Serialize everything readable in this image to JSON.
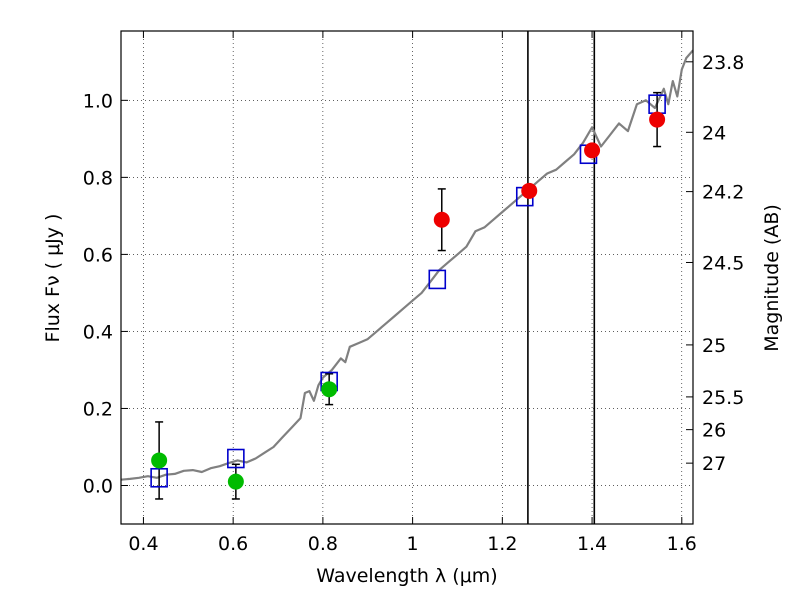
{
  "chart_data": {
    "type": "scatter",
    "title": "",
    "xlabel": "Wavelength  λ (μm)",
    "ylabel": "Flux  Fν  ( μJy )",
    "ylabel_right": "Magnitude (AB)",
    "xlim": [
      0.35,
      1.625
    ],
    "ylim": [
      -0.1,
      1.18
    ],
    "grid": true,
    "x_ticks": [
      0.4,
      0.6,
      0.8,
      1.0,
      1.2,
      1.4,
      1.6
    ],
    "x_tick_labels": [
      "0.4",
      "0.6",
      "0.8",
      "1",
      "1.2",
      "1.4",
      "1.6"
    ],
    "y_ticks": [
      0.0,
      0.2,
      0.4,
      0.6,
      0.8,
      1.0
    ],
    "y_tick_labels": [
      "0.0",
      "0.2",
      "0.4",
      "0.6",
      "0.8",
      "1.0"
    ],
    "right_ticks": [
      {
        "label": "23.8",
        "flux": 1.1
      },
      {
        "label": "24",
        "flux": 0.917
      },
      {
        "label": "24.2",
        "flux": 0.763
      },
      {
        "label": "24.5",
        "flux": 0.579
      },
      {
        "label": "25",
        "flux": 0.365
      },
      {
        "label": "25.5",
        "flux": 0.23
      },
      {
        "label": "26",
        "flux": 0.145
      },
      {
        "label": "27",
        "flux": 0.058
      }
    ],
    "vertical_lines": [
      1.257,
      1.405
    ],
    "model_spectrum": {
      "color": "#808080",
      "x": [
        0.35,
        0.37,
        0.39,
        0.41,
        0.43,
        0.45,
        0.47,
        0.49,
        0.51,
        0.53,
        0.55,
        0.57,
        0.59,
        0.61,
        0.63,
        0.65,
        0.67,
        0.69,
        0.71,
        0.73,
        0.75,
        0.76,
        0.77,
        0.78,
        0.79,
        0.8,
        0.82,
        0.84,
        0.85,
        0.86,
        0.88,
        0.9,
        0.92,
        0.94,
        0.96,
        0.98,
        1.0,
        1.02,
        1.04,
        1.06,
        1.08,
        1.1,
        1.12,
        1.14,
        1.16,
        1.18,
        1.2,
        1.22,
        1.24,
        1.26,
        1.28,
        1.3,
        1.32,
        1.34,
        1.36,
        1.38,
        1.4,
        1.42,
        1.44,
        1.46,
        1.48,
        1.5,
        1.52,
        1.54,
        1.56,
        1.57,
        1.58,
        1.59,
        1.6,
        1.61,
        1.625
      ],
      "y": [
        0.015,
        0.017,
        0.02,
        0.024,
        0.02,
        0.028,
        0.03,
        0.038,
        0.04,
        0.035,
        0.045,
        0.05,
        0.058,
        0.065,
        0.06,
        0.07,
        0.085,
        0.1,
        0.125,
        0.15,
        0.175,
        0.24,
        0.245,
        0.22,
        0.26,
        0.28,
        0.3,
        0.33,
        0.32,
        0.36,
        0.37,
        0.38,
        0.4,
        0.42,
        0.44,
        0.46,
        0.48,
        0.5,
        0.53,
        0.56,
        0.58,
        0.6,
        0.62,
        0.66,
        0.67,
        0.69,
        0.71,
        0.73,
        0.75,
        0.77,
        0.79,
        0.81,
        0.82,
        0.84,
        0.86,
        0.89,
        0.93,
        0.88,
        0.91,
        0.94,
        0.92,
        0.99,
        1.0,
        0.98,
        1.03,
        0.99,
        1.05,
        1.01,
        1.08,
        1.11,
        1.13
      ]
    },
    "model_photometry": {
      "color": "#0000cc",
      "marker": "square",
      "x": [
        0.435,
        0.606,
        0.814,
        1.055,
        1.25,
        1.392,
        1.545
      ],
      "y": [
        0.02,
        0.07,
        0.27,
        0.535,
        0.75,
        0.86,
        0.99
      ]
    },
    "observed_green": {
      "color": "#00bb00",
      "marker": "circle",
      "x": [
        0.435,
        0.606,
        0.814
      ],
      "y": [
        0.065,
        0.01,
        0.25
      ],
      "yerr": [
        0.1,
        0.045,
        0.04
      ]
    },
    "observed_red": {
      "color": "#ee0000",
      "marker": "circle",
      "x": [
        1.065,
        1.26,
        1.4,
        1.545
      ],
      "y": [
        0.69,
        0.765,
        0.87,
        0.95
      ],
      "yerr": [
        0.08,
        0.0,
        0.01,
        0.07
      ]
    }
  }
}
